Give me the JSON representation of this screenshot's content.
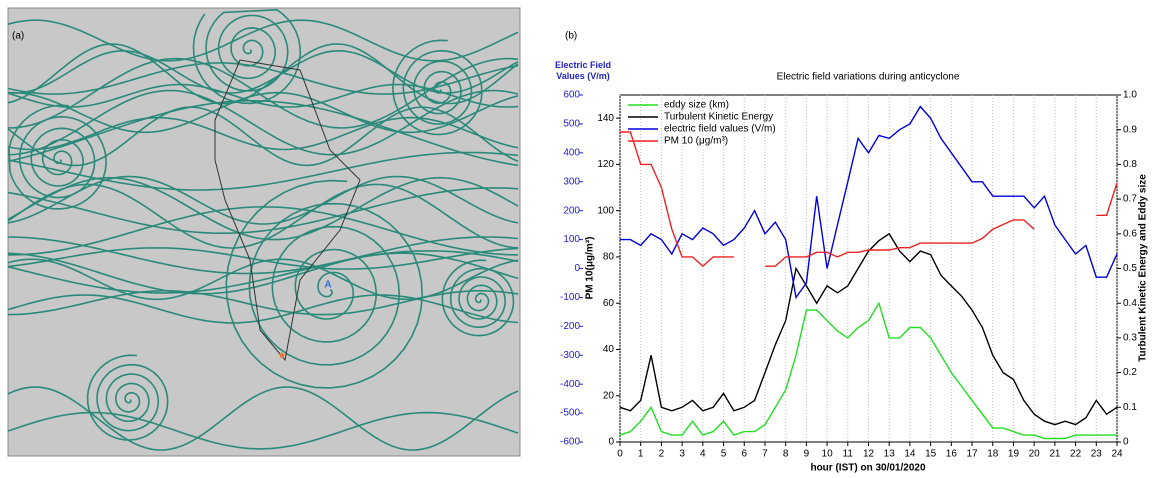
{
  "panel_a": {
    "label": "(a)",
    "marker": "A"
  },
  "chart_data": {
    "type": "line",
    "panel_label": "(b)",
    "title": "Electric field variations during anticyclone",
    "xlabel": "hour (IST) on 30/01/2020",
    "ylabel": "PM 10(μg/m³)",
    "y2label": "Turbulent Kinetic Energy and Eddy size",
    "y3label": "Electric Field Values (V/m)",
    "xlim": [
      0,
      24
    ],
    "xticks": [
      0,
      1,
      2,
      3,
      4,
      5,
      6,
      7,
      8,
      9,
      10,
      11,
      12,
      13,
      14,
      15,
      16,
      17,
      18,
      19,
      20,
      21,
      22,
      23,
      24
    ],
    "ylim": [
      0,
      150
    ],
    "yticks": [
      0,
      20,
      40,
      60,
      80,
      100,
      120,
      140
    ],
    "y2lim": [
      0,
      1
    ],
    "y2ticks": [
      0,
      0.1,
      0.2,
      0.3,
      0.4,
      0.5,
      0.6,
      0.7,
      0.8,
      0.9,
      {
        "value": 1,
        "label": "1.0"
      }
    ],
    "y3lim": [
      -600,
      600
    ],
    "y3ticks": [
      -600,
      -500,
      -400,
      -300,
      -200,
      -100,
      0,
      100,
      200,
      300,
      400,
      500,
      600
    ],
    "grid": true,
    "legend": "upper left",
    "x": [
      0,
      0.5,
      1,
      1.5,
      2,
      2.5,
      3,
      3.5,
      4,
      4.5,
      5,
      5.5,
      6,
      6.5,
      7,
      7.5,
      8,
      8.5,
      9,
      9.5,
      10,
      10.5,
      11,
      11.5,
      12,
      12.5,
      13,
      13.5,
      14,
      14.5,
      15,
      15.5,
      16,
      16.5,
      17,
      17.5,
      18,
      18.5,
      19,
      19.5,
      20,
      20.5,
      21,
      21.5,
      22,
      22.5,
      23,
      23.5,
      24
    ],
    "series": [
      {
        "name": "eddy size (km)",
        "color": "#22dd22",
        "axis": "y2",
        "values": [
          0.02,
          0.03,
          0.06,
          0.1,
          0.03,
          0.02,
          0.02,
          0.06,
          0.02,
          0.03,
          0.06,
          0.02,
          0.03,
          0.03,
          0.05,
          0.1,
          0.15,
          0.25,
          0.38,
          0.38,
          0.35,
          0.32,
          0.3,
          0.33,
          0.35,
          0.4,
          0.3,
          0.3,
          0.33,
          0.33,
          0.3,
          0.25,
          0.2,
          0.16,
          0.12,
          0.08,
          0.04,
          0.04,
          0.03,
          0.02,
          0.02,
          0.01,
          0.01,
          0.01,
          0.02,
          0.02,
          0.02,
          0.02,
          0.02
        ]
      },
      {
        "name": "Turbulent Kinetic Energy",
        "color": "#000000",
        "axis": "y2",
        "values": [
          0.1,
          0.09,
          0.12,
          0.25,
          0.1,
          0.09,
          0.1,
          0.12,
          0.09,
          0.1,
          0.14,
          0.09,
          0.1,
          0.12,
          0.2,
          0.28,
          0.35,
          0.5,
          0.45,
          0.4,
          0.45,
          0.43,
          0.45,
          0.5,
          0.55,
          0.58,
          0.6,
          0.55,
          0.52,
          0.55,
          0.54,
          0.48,
          0.45,
          0.42,
          0.38,
          0.33,
          0.25,
          0.2,
          0.18,
          0.12,
          0.08,
          0.06,
          0.05,
          0.06,
          0.05,
          0.07,
          0.12,
          0.08,
          0.1
        ]
      },
      {
        "name": "electric field values (V/m)",
        "color": "#0000dd",
        "axis": "y3",
        "values": [
          100,
          100,
          80,
          120,
          100,
          50,
          120,
          100,
          140,
          120,
          80,
          100,
          140,
          200,
          120,
          160,
          100,
          -100,
          -50,
          250,
          0,
          150,
          300,
          450,
          400,
          460,
          450,
          480,
          500,
          560,
          520,
          450,
          400,
          350,
          300,
          300,
          250,
          250,
          250,
          250,
          210,
          250,
          150,
          100,
          50,
          80,
          -30,
          -30,
          50
        ]
      },
      {
        "name": "PM 10 (μg/m³)",
        "color": "#ee2222",
        "axis": "y",
        "values": [
          134,
          134,
          120,
          120,
          110,
          92,
          80,
          80,
          76,
          80,
          80,
          80,
          null,
          null,
          76,
          76,
          80,
          80,
          80,
          82,
          82,
          80,
          82,
          82,
          83,
          83,
          83,
          84,
          84,
          86,
          86,
          86,
          86,
          86,
          86,
          88,
          92,
          94,
          96,
          96,
          92,
          null,
          null,
          null,
          null,
          null,
          98,
          98,
          112
        ]
      }
    ]
  }
}
